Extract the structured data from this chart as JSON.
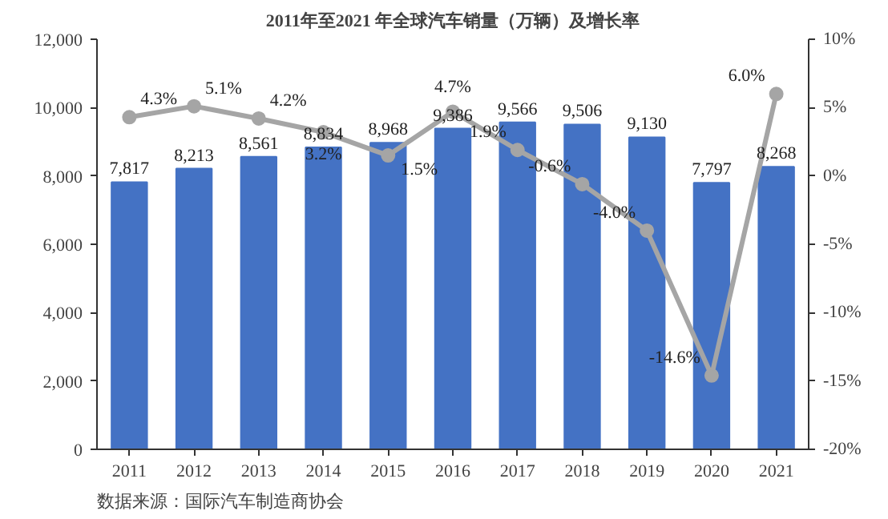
{
  "chart_data": {
    "type": "bar",
    "title": "2011年至2021 年全球汽车销量（万辆）及增长率",
    "categories": [
      "2011",
      "2012",
      "2013",
      "2014",
      "2015",
      "2016",
      "2017",
      "2018",
      "2019",
      "2020",
      "2021"
    ],
    "series": [
      {
        "name": null,
        "color": "#4472c4",
        "values": [
          7817,
          8213,
          8561,
          8834,
          8968,
          9386,
          9566,
          9506,
          9130,
          7797,
          8268
        ],
        "value_labels": [
          "7,817",
          "8,213",
          "8,561",
          "8,834",
          "8,968",
          "9,386",
          "9,566",
          "9,506",
          "9,130",
          "7,797",
          "8,268"
        ]
      },
      {
        "name": null,
        "type": "line",
        "axis": "y2",
        "color": "#a5a5a5",
        "values": [
          4.3,
          5.1,
          4.2,
          3.2,
          1.5,
          4.7,
          1.9,
          -0.6,
          -4.0,
          -14.6,
          6.0
        ],
        "value_labels": [
          "4.3%",
          "5.1%",
          "4.2%",
          "3.2%",
          "1.5%",
          "4.7%",
          "1.9%",
          "-0.6%",
          "-4.0%",
          "-14.6%",
          "6.0%"
        ]
      }
    ],
    "ylim": [
      0,
      12000
    ],
    "yticks": [
      {
        "value": 0,
        "label": "0"
      },
      {
        "value": 2000,
        "label": "2,000"
      },
      {
        "value": 4000,
        "label": "4,000"
      },
      {
        "value": 6000,
        "label": "6,000"
      },
      {
        "value": 8000,
        "label": "8,000"
      },
      {
        "value": 10000,
        "label": "10,000"
      },
      {
        "value": 12000,
        "label": "12,000"
      }
    ],
    "y2lim": [
      -20,
      10
    ],
    "y2ticks": [
      {
        "value": -20,
        "label": "-20%"
      },
      {
        "value": -15,
        "label": "-15%"
      },
      {
        "value": -10,
        "label": "-10%"
      },
      {
        "value": -5,
        "label": "-5%"
      },
      {
        "value": 0,
        "label": "0%"
      },
      {
        "value": 5,
        "label": "5%"
      },
      {
        "value": 10,
        "label": "10%"
      }
    ],
    "marker": "circle",
    "grid": false,
    "annotations": [
      "数据来源：国际汽车制造商协会"
    ]
  }
}
